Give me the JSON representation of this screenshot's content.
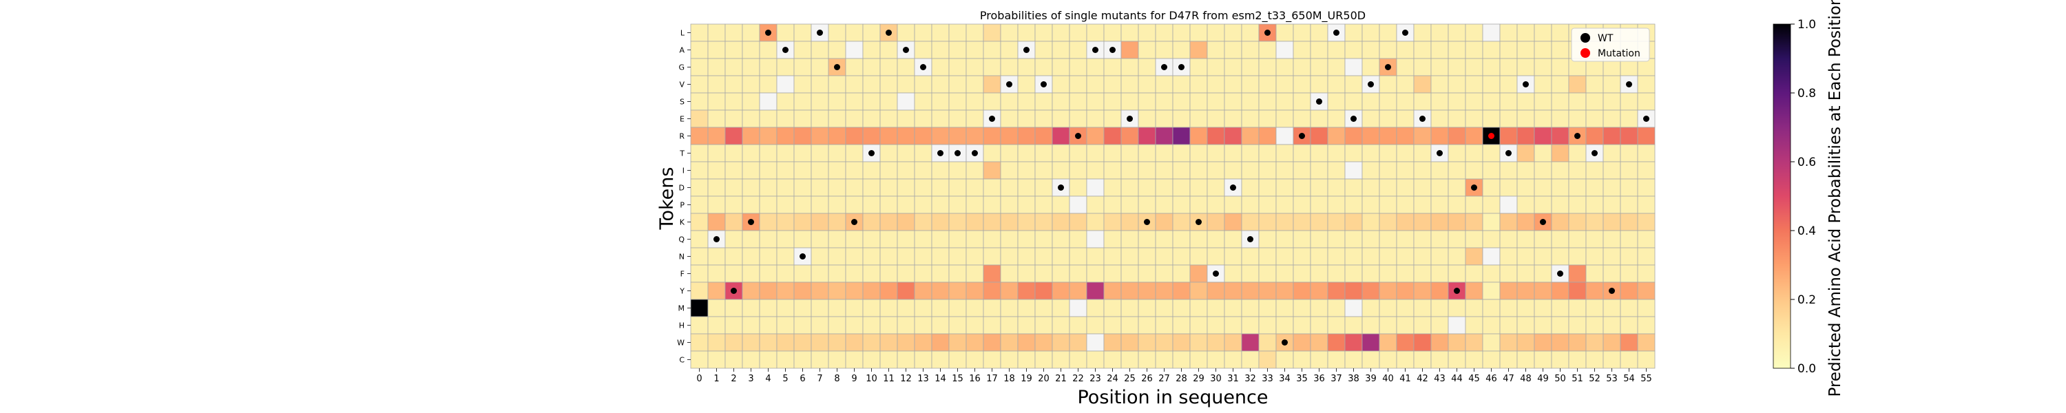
{
  "chart_data": {
    "type": "heatmap",
    "title": "Probabilities of single mutants for D47R from esm2_t33_650M_UR50D",
    "xlabel": "Position in sequence",
    "ylabel": "Tokens",
    "x": [
      0,
      1,
      2,
      3,
      4,
      5,
      6,
      7,
      8,
      9,
      10,
      11,
      12,
      13,
      14,
      15,
      16,
      17,
      18,
      19,
      20,
      21,
      22,
      23,
      24,
      25,
      26,
      27,
      28,
      29,
      30,
      31,
      32,
      33,
      34,
      35,
      36,
      37,
      38,
      39,
      40,
      41,
      42,
      43,
      44,
      45,
      46,
      47,
      48,
      49,
      50,
      51,
      52,
      53,
      54,
      55
    ],
    "tokens": [
      "L",
      "A",
      "G",
      "V",
      "S",
      "E",
      "R",
      "T",
      "I",
      "D",
      "P",
      "K",
      "Q",
      "N",
      "F",
      "Y",
      "M",
      "H",
      "W",
      "C"
    ],
    "colorbar": {
      "label": "Predicted Amino Acid Probabilities at Each Position",
      "range": [
        0.0,
        1.0
      ],
      "ticks": [
        "0.0",
        "0.2",
        "0.4",
        "0.6",
        "0.8",
        "1.0"
      ],
      "colormap": "magma_r"
    },
    "wild_type_sequence": "MQYKLANLGKTLAGTTTEVAVDRAAEKGGKFDQLWRSLEVGLETYDRTVKFRTYVE",
    "mutation": {
      "position": 46,
      "token": "R"
    },
    "light_cells": {
      "L": [
        17,
        33
      ],
      "A": [
        29
      ],
      "S": [],
      "E": [
        0
      ],
      "I": [
        17
      ],
      "P": [],
      "Q": [],
      "N": [
        45
      ],
      "F": [],
      "H": [],
      "C": [
        33
      ]
    },
    "white_cells": [
      [
        4,
        4
      ],
      [
        9,
        1
      ],
      [
        5,
        3
      ],
      [
        12,
        4
      ],
      [
        20,
        22
      ],
      [
        22,
        10
      ],
      [
        22,
        16
      ],
      [
        23,
        9
      ],
      [
        23,
        12
      ],
      [
        23,
        18
      ],
      [
        34,
        1
      ],
      [
        34,
        6
      ],
      [
        38,
        2
      ],
      [
        38,
        8
      ],
      [
        38,
        16
      ],
      [
        44,
        17
      ],
      [
        46,
        0
      ],
      [
        46,
        13
      ],
      [
        47,
        10
      ]
    ],
    "row_gradients": {
      "R": [
        0.28,
        0.28,
        0.45,
        0.28,
        0.26,
        0.3,
        0.32,
        0.28,
        0.3,
        0.33,
        0.32,
        0.3,
        0.3,
        0.3,
        0.28,
        0.28,
        0.28,
        0.3,
        0.3,
        0.32,
        0.33,
        0.52,
        0.34,
        0.28,
        0.42,
        0.34,
        0.52,
        0.62,
        0.74,
        0.3,
        0.42,
        0.45,
        0.26,
        0.3,
        0.4,
        0.38,
        0.4,
        0.26,
        0.32,
        0.3,
        0.3,
        0.3,
        0.26,
        0.3,
        0.34,
        0.3,
        1.0,
        0.38,
        0.42,
        0.48,
        0.46,
        0.3,
        0.36,
        0.42,
        0.42,
        0.38
      ],
      "Y": [
        0.1,
        0.24,
        0.5,
        0.24,
        0.26,
        0.24,
        0.26,
        0.24,
        0.22,
        0.24,
        0.26,
        0.3,
        0.38,
        0.26,
        0.26,
        0.24,
        0.26,
        0.32,
        0.26,
        0.36,
        0.38,
        0.28,
        0.26,
        0.6,
        0.26,
        0.26,
        0.26,
        0.26,
        0.28,
        0.22,
        0.26,
        0.26,
        0.26,
        0.26,
        0.26,
        0.3,
        0.28,
        0.36,
        0.38,
        0.34,
        0.26,
        0.28,
        0.26,
        0.3,
        0.5,
        0.26,
        0.05,
        0.26,
        0.26,
        0.26,
        0.3,
        0.38,
        0.28,
        0.28,
        0.3,
        0.26
      ],
      "K": [
        0.1,
        0.26,
        0.16,
        0.3,
        0.14,
        0.14,
        0.16,
        0.18,
        0.16,
        0.22,
        0.16,
        0.18,
        0.2,
        0.14,
        0.16,
        0.14,
        0.16,
        0.16,
        0.16,
        0.14,
        0.14,
        0.16,
        0.16,
        0.1,
        0.14,
        0.16,
        0.16,
        0.2,
        0.14,
        0.16,
        0.18,
        0.24,
        0.14,
        0.14,
        0.14,
        0.14,
        0.14,
        0.14,
        0.16,
        0.1,
        0.14,
        0.18,
        0.18,
        0.2,
        0.2,
        0.18,
        0.05,
        0.2,
        0.24,
        0.3,
        0.2,
        0.16,
        0.14,
        0.16,
        0.16,
        0.14
      ],
      "W": [
        0.1,
        0.12,
        0.14,
        0.14,
        0.14,
        0.16,
        0.16,
        0.16,
        0.16,
        0.18,
        0.16,
        0.18,
        0.2,
        0.22,
        0.26,
        0.2,
        0.22,
        0.26,
        0.2,
        0.24,
        0.22,
        0.18,
        0.18,
        0.12,
        0.2,
        0.2,
        0.16,
        0.16,
        0.18,
        0.14,
        0.16,
        0.18,
        0.58,
        0.12,
        0.2,
        0.24,
        0.22,
        0.38,
        0.46,
        0.64,
        0.22,
        0.36,
        0.4,
        0.26,
        0.2,
        0.18,
        0.06,
        0.18,
        0.2,
        0.24,
        0.24,
        0.22,
        0.18,
        0.22,
        0.34,
        0.2
      ]
    },
    "highlight_cells": [
      {
        "token": "L",
        "position": 4,
        "value": 0.3
      },
      {
        "token": "L",
        "position": 11,
        "value": 0.18
      },
      {
        "token": "L",
        "position": 33,
        "value": 0.34
      },
      {
        "token": "A",
        "position": 25,
        "value": 0.28
      },
      {
        "token": "A",
        "position": 29,
        "value": 0.24
      },
      {
        "token": "G",
        "position": 8,
        "value": 0.22
      },
      {
        "token": "G",
        "position": 40,
        "value": 0.26
      },
      {
        "token": "V",
        "position": 17,
        "value": 0.18
      },
      {
        "token": "V",
        "position": 42,
        "value": 0.18
      },
      {
        "token": "V",
        "position": 51,
        "value": 0.18
      },
      {
        "token": "T",
        "position": 48,
        "value": 0.2
      },
      {
        "token": "T",
        "position": 50,
        "value": 0.22
      },
      {
        "token": "I",
        "position": 17,
        "value": 0.22
      },
      {
        "token": "D",
        "position": 45,
        "value": 0.3
      },
      {
        "token": "N",
        "position": 45,
        "value": 0.2
      },
      {
        "token": "F",
        "position": 17,
        "value": 0.34
      },
      {
        "token": "F",
        "position": 29,
        "value": 0.26
      },
      {
        "token": "F",
        "position": 51,
        "value": 0.34
      }
    ],
    "legend": {
      "placement": "top-right",
      "entries": [
        {
          "label": "WT",
          "color": "#000000"
        },
        {
          "label": "Mutation",
          "color": "#ff0000"
        }
      ]
    }
  }
}
